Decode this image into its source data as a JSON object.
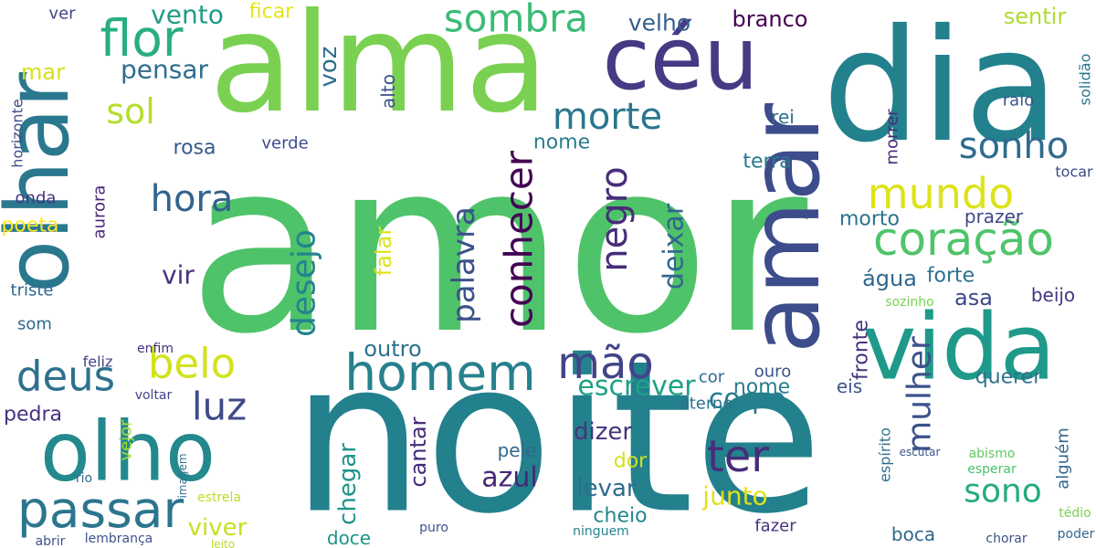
{
  "words": [
    {
      "text": "amor",
      "color": "#4fc36a"
    },
    {
      "text": "noite",
      "color": "#23808d"
    },
    {
      "text": "alma",
      "color": "#7ad151"
    },
    {
      "text": "dia",
      "color": "#22818d"
    },
    {
      "text": "céu",
      "color": "#463a84"
    },
    {
      "text": "amar",
      "color": "#3d4c8a"
    },
    {
      "text": "vida",
      "color": "#1f9a8a"
    },
    {
      "text": "olhar",
      "color": "#2a788e"
    },
    {
      "text": "olho",
      "color": "#23898e"
    },
    {
      "text": "homem",
      "color": "#27808e"
    },
    {
      "text": "passar",
      "color": "#2b758e"
    },
    {
      "text": "coração",
      "color": "#4fc46a"
    },
    {
      "text": "flor",
      "color": "#28ae80"
    },
    {
      "text": "sombra",
      "color": "#3bbb75"
    },
    {
      "text": "mundo",
      "color": "#dde318"
    },
    {
      "text": "belo",
      "color": "#d2e21b"
    },
    {
      "text": "mão",
      "color": "#414487"
    },
    {
      "text": "deus",
      "color": "#2d708e"
    },
    {
      "text": "luz",
      "color": "#3e4a89"
    },
    {
      "text": "hora",
      "color": "#33638d"
    },
    {
      "text": "ter",
      "color": "#472d7b"
    },
    {
      "text": "sonho",
      "color": "#2f6c8e"
    },
    {
      "text": "morte",
      "color": "#2a778e"
    },
    {
      "text": "sol",
      "color": "#b5de2b"
    },
    {
      "text": "conhecer",
      "color": "#440154"
    },
    {
      "text": "palavra",
      "color": "#3b518b"
    },
    {
      "text": "desejo",
      "color": "#26828e"
    },
    {
      "text": "negro",
      "color": "#472c7a"
    },
    {
      "text": "mulher",
      "color": "#3b528b"
    },
    {
      "text": "sono",
      "color": "#25ab82"
    },
    {
      "text": "escrever",
      "color": "#1fa187"
    },
    {
      "text": "corpo",
      "color": "#287c8e"
    },
    {
      "text": "azul",
      "color": "#482777"
    },
    {
      "text": "junto",
      "color": "#dde318"
    },
    {
      "text": "pensar",
      "color": "#2e6e8e"
    },
    {
      "text": "vento",
      "color": "#1e9c89"
    },
    {
      "text": "ficar",
      "color": "#e5e419"
    },
    {
      "text": "mar",
      "color": "#d5e21a"
    },
    {
      "text": "velho",
      "color": "#355f8d"
    },
    {
      "text": "branco",
      "color": "#440154"
    },
    {
      "text": "sentir",
      "color": "#addc30"
    },
    {
      "text": "voz",
      "color": "#2e6f8e"
    },
    {
      "text": "alto",
      "color": "#3b528b"
    },
    {
      "text": "nome",
      "color": "#287d8e"
    },
    {
      "text": "rosa",
      "color": "#38598c"
    },
    {
      "text": "terra",
      "color": "#2a778e"
    },
    {
      "text": "morto",
      "color": "#2c718e"
    },
    {
      "text": "água",
      "color": "#31678e"
    },
    {
      "text": "forte",
      "color": "#2d718e"
    },
    {
      "text": "prazer",
      "color": "#3f4889"
    },
    {
      "text": "asa",
      "color": "#3f4889"
    },
    {
      "text": "beijo",
      "color": "#453581"
    },
    {
      "text": "vir",
      "color": "#46327e"
    },
    {
      "text": "falar",
      "color": "#dae319"
    },
    {
      "text": "deixar",
      "color": "#31668e"
    },
    {
      "text": "fronte",
      "color": "#46327e"
    },
    {
      "text": "querer",
      "color": "#2c728e"
    },
    {
      "text": "eis",
      "color": "#39558c"
    },
    {
      "text": "dizer",
      "color": "#46337f"
    },
    {
      "text": "dor",
      "color": "#d2e21b"
    },
    {
      "text": "levar",
      "color": "#2f6b8e"
    },
    {
      "text": "cheio",
      "color": "#24868e"
    },
    {
      "text": "chegar",
      "color": "#1f958b"
    },
    {
      "text": "cantar",
      "color": "#472a7a"
    },
    {
      "text": "pele",
      "color": "#31688e"
    },
    {
      "text": "viver",
      "color": "#c8e020"
    },
    {
      "text": "pedra",
      "color": "#46327e"
    },
    {
      "text": "outro",
      "color": "#2c728e"
    },
    {
      "text": "poeta",
      "color": "#fde725"
    },
    {
      "text": "aurora",
      "color": "#482878"
    },
    {
      "text": "som",
      "color": "#2f6b8e"
    },
    {
      "text": "triste",
      "color": "#31688e"
    },
    {
      "text": "onda",
      "color": "#453581"
    },
    {
      "text": "horizonte",
      "color": "#3d4d8a"
    },
    {
      "text": "ver",
      "color": "#414487"
    },
    {
      "text": "sol_",
      "color": "#b5de2b"
    },
    {
      "text": "rei",
      "color": "#2d708e"
    },
    {
      "text": "verde",
      "color": "#3e4c8a"
    },
    {
      "text": "solidão",
      "color": "#2a788e"
    },
    {
      "text": "raio",
      "color": "#39558c"
    },
    {
      "text": "cor",
      "color": "#2e6e8e"
    },
    {
      "text": "ouro",
      "color": "#3b528b"
    },
    {
      "text": "nome2",
      "color": "#287d8e"
    },
    {
      "text": "eterno",
      "color": "#2c728e"
    },
    {
      "text": "fazer",
      "color": "#46327e"
    },
    {
      "text": "boca",
      "color": "#31688e"
    },
    {
      "text": "doce",
      "color": "#1f958b"
    },
    {
      "text": "vejor",
      "color": "#a5db36"
    },
    {
      "text": "feliz",
      "color": "#414487"
    },
    {
      "text": "alguém",
      "color": "#31688e"
    },
    {
      "text": "tocar",
      "color": "#3e4989"
    },
    {
      "text": "enfim",
      "color": "#46327e"
    },
    {
      "text": "morrer",
      "color": "#472c7a"
    },
    {
      "text": "espírito",
      "color": "#2e6f8e"
    },
    {
      "text": "sozinho",
      "color": "#7ad151"
    },
    {
      "text": "voltar",
      "color": "#414487"
    },
    {
      "text": "rio",
      "color": "#31688e"
    },
    {
      "text": "estrela",
      "color": "#b8de29"
    },
    {
      "text": "imagem",
      "color": "#2d708e"
    },
    {
      "text": "puro",
      "color": "#3b528b"
    },
    {
      "text": "ninguem",
      "color": "#26828e"
    },
    {
      "text": "escutar",
      "color": "#39558c"
    },
    {
      "text": "poder",
      "color": "#31688e"
    },
    {
      "text": "tédio",
      "color": "#7ad151"
    },
    {
      "text": "chorar",
      "color": "#3b528b"
    },
    {
      "text": "esperar",
      "color": "#4ac16d"
    },
    {
      "text": "abismo",
      "color": "#5ec962"
    },
    {
      "text": "lembrança",
      "color": "#3b528b"
    },
    {
      "text": "abrir",
      "color": "#3b528b"
    },
    {
      "text": "leito",
      "color": "#b8de29"
    }
  ]
}
